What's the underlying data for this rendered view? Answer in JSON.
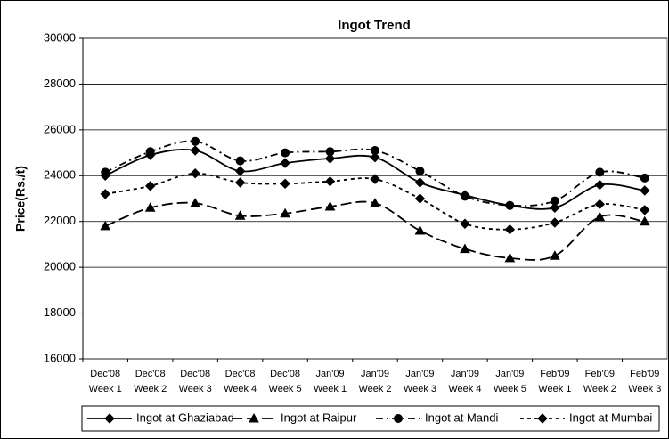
{
  "chart_data": {
    "type": "line",
    "title": "Ingot Trend",
    "y_label": "Price(Rs./t)",
    "categories": [
      [
        "Dec'08",
        "Week 1"
      ],
      [
        "Dec'08",
        "Week 2"
      ],
      [
        "Dec'08",
        "Week 3"
      ],
      [
        "Dec'08",
        "Week 4"
      ],
      [
        "Dec'08",
        "Week 5"
      ],
      [
        "Jan'09",
        "Week 1"
      ],
      [
        "Jan'09",
        "Week 2"
      ],
      [
        "Jan'09",
        "Week 3"
      ],
      [
        "Jan'09",
        "Week 4"
      ],
      [
        "Jan'09",
        "Week 5"
      ],
      [
        "Feb'09",
        "Week 1"
      ],
      [
        "Feb'09",
        "Week 2"
      ],
      [
        "Feb'09",
        "Week 3"
      ]
    ],
    "series": [
      {
        "name": "Ingot at Ghaziabad",
        "color": "#000000",
        "line_style": "solid",
        "marker": "diamond",
        "values": [
          24000,
          24900,
          25100,
          24200,
          24550,
          24750,
          24800,
          23700,
          23150,
          22700,
          22600,
          23600,
          23350
        ]
      },
      {
        "name": "Ingot at Raipur",
        "color": "#000000",
        "line_style": "long-dash",
        "marker": "triangle",
        "values": [
          21800,
          22600,
          22800,
          22250,
          22350,
          22650,
          22800,
          21600,
          20800,
          20400,
          20500,
          22200,
          22000
        ]
      },
      {
        "name": "Ingot at Mandi",
        "color": "#000000",
        "line_style": "dash-dot",
        "marker": "circle",
        "values": [
          24150,
          25050,
          25500,
          24650,
          25000,
          25050,
          25100,
          24200,
          23100,
          22700,
          22900,
          24150,
          23900
        ]
      },
      {
        "name": "Ingot at Mumbai",
        "color": "#000000",
        "line_style": "short-dash",
        "marker": "diamond",
        "values": [
          23200,
          23550,
          24100,
          23700,
          23650,
          23750,
          23850,
          23000,
          21900,
          21650,
          21950,
          22750,
          22500
        ]
      }
    ],
    "ylim": [
      16000,
      30000
    ],
    "yticks": [
      16000,
      18000,
      20000,
      22000,
      24000,
      26000,
      28000,
      30000
    ],
    "grid": true,
    "smooth": true,
    "legend": "bottom"
  }
}
